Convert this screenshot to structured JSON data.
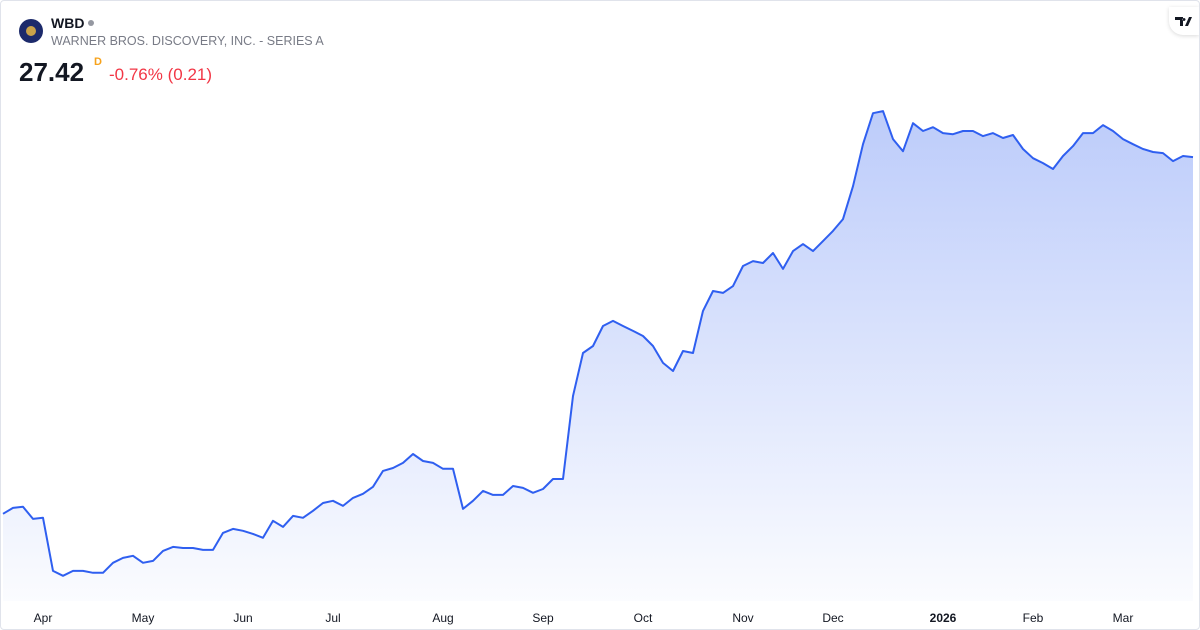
{
  "header": {
    "symbol": "WBD",
    "name": "WARNER BROS. DISCOVERY, INC. - SERIES A",
    "price": "27.42",
    "interval": "D",
    "change_percent": "-0.76%",
    "change": "(0.21)"
  },
  "chart_data": {
    "type": "area",
    "color": "#2f5ff0",
    "ylim": [
      6.5,
      30.3
    ],
    "categories": [
      null,
      null,
      null,
      null,
      "Apr",
      null,
      null,
      null,
      null,
      null,
      null,
      null,
      null,
      null,
      "May",
      null,
      null,
      null,
      null,
      null,
      null,
      null,
      null,
      null,
      "Jun",
      null,
      null,
      null,
      null,
      null,
      null,
      null,
      null,
      "Jul",
      null,
      null,
      null,
      null,
      null,
      null,
      null,
      null,
      null,
      null,
      "Aug",
      null,
      null,
      null,
      null,
      null,
      null,
      null,
      null,
      null,
      "Sep",
      null,
      null,
      null,
      null,
      null,
      null,
      null,
      null,
      null,
      "Oct",
      null,
      null,
      null,
      null,
      null,
      null,
      null,
      null,
      null,
      "Nov",
      null,
      null,
      null,
      null,
      null,
      null,
      null,
      null,
      "Dec",
      null,
      null,
      null,
      null,
      null,
      null,
      null,
      null,
      null,
      null,
      "2026",
      null,
      null,
      null,
      null,
      null,
      null,
      null,
      null,
      "Feb",
      null,
      null,
      null,
      null,
      null,
      null,
      null,
      null,
      "Mar",
      null,
      null,
      null,
      null,
      null,
      null,
      null
    ],
    "values": [
      10.61,
      10.89,
      10.94,
      10.37,
      10.42,
      7.92,
      7.69,
      7.92,
      7.92,
      7.83,
      7.83,
      8.3,
      8.53,
      8.63,
      8.3,
      8.39,
      8.86,
      9.05,
      9.0,
      9.0,
      8.91,
      8.91,
      9.71,
      9.9,
      9.81,
      9.66,
      9.48,
      10.28,
      9.99,
      10.51,
      10.42,
      10.75,
      11.12,
      11.22,
      10.98,
      11.36,
      11.55,
      11.88,
      12.63,
      12.77,
      13.01,
      13.43,
      13.1,
      13.01,
      12.73,
      12.73,
      10.84,
      11.22,
      11.69,
      11.5,
      11.5,
      11.92,
      11.83,
      11.6,
      11.78,
      12.25,
      12.25,
      16.16,
      18.19,
      18.52,
      19.46,
      19.7,
      19.46,
      19.23,
      18.99,
      18.52,
      17.72,
      17.34,
      18.28,
      18.19,
      20.17,
      21.11,
      21.02,
      21.34,
      22.29,
      22.52,
      22.43,
      22.9,
      22.15,
      22.99,
      23.32,
      22.99,
      23.46,
      23.94,
      24.5,
      26.05,
      28.03,
      29.49,
      29.59,
      28.27,
      27.7,
      29.02,
      28.65,
      28.83,
      28.55,
      28.5,
      28.65,
      28.65,
      28.41,
      28.55,
      28.32,
      28.46,
      27.8,
      27.37,
      27.14,
      26.86,
      27.47,
      27.94,
      28.55,
      28.55,
      28.93,
      28.65,
      28.27,
      28.03,
      27.8,
      27.66,
      27.61,
      27.23,
      27.47,
      27.42
    ]
  }
}
